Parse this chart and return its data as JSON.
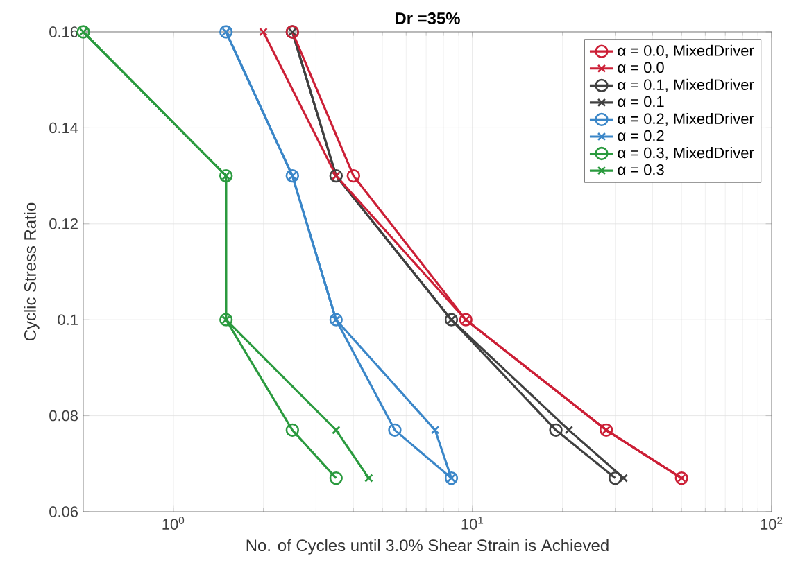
{
  "chart_data": {
    "type": "line",
    "title": "Dr =35%",
    "xlabel": "No. of Cycles until 3.0% Shear Strain is Achieved",
    "ylabel": "Cyclic Stress Ratio",
    "log": "x",
    "grid": true,
    "legend": "top right",
    "xlim": [
      0.5,
      100
    ],
    "xticks": [
      {
        "value": 1,
        "label": "10$^{0}$"
      },
      {
        "value": 10,
        "label": "10$^{1}$"
      },
      {
        "value": 100,
        "label": "10$^{2}$"
      }
    ],
    "ylim": [
      0.06,
      0.16
    ],
    "yticks": [
      0.06,
      0.08,
      0.1,
      0.12,
      0.14,
      0.16
    ],
    "series": [
      {
        "name": "α = 0.0, MixedDriver",
        "color": "#cc1f36",
        "marker": "circle",
        "x": [
          2.5,
          4,
          9.5,
          28,
          50
        ],
        "values": [
          0.16,
          0.13,
          0.1,
          0.077,
          0.067
        ]
      },
      {
        "name": "α = 0.0",
        "color": "#cc1f36",
        "marker": "cross",
        "x": [
          2,
          3.5,
          9.5,
          28,
          50
        ],
        "values": [
          0.16,
          0.13,
          0.1,
          0.077,
          0.067
        ]
      },
      {
        "name": "α = 0.1, MixedDriver",
        "color": "#404040",
        "marker": "circle",
        "x": [
          2.5,
          3.5,
          8.5,
          19,
          30
        ],
        "values": [
          0.16,
          0.13,
          0.1,
          0.077,
          0.067
        ]
      },
      {
        "name": "α = 0.1",
        "color": "#404040",
        "marker": "cross",
        "x": [
          2.5,
          3.5,
          8.5,
          21,
          32
        ],
        "values": [
          0.16,
          0.13,
          0.1,
          0.077,
          0.067
        ]
      },
      {
        "name": "α = 0.2, MixedDriver",
        "color": "#3a86c8",
        "marker": "circle",
        "x": [
          1.5,
          2.5,
          3.5,
          5.5,
          8.5
        ],
        "values": [
          0.16,
          0.13,
          0.1,
          0.077,
          0.067
        ]
      },
      {
        "name": "α = 0.2",
        "color": "#3a86c8",
        "marker": "cross",
        "x": [
          1.5,
          2.5,
          3.5,
          7.5,
          8.5
        ],
        "values": [
          0.16,
          0.13,
          0.1,
          0.077,
          0.067
        ]
      },
      {
        "name": "α = 0.3, MixedDriver",
        "color": "#2a9a3e",
        "marker": "circle",
        "x": [
          0.5,
          1.5,
          1.5,
          2.5,
          3.5
        ],
        "values": [
          0.16,
          0.13,
          0.1,
          0.077,
          0.067
        ]
      },
      {
        "name": "α = 0.3",
        "color": "#2a9a3e",
        "marker": "cross",
        "x": [
          0.5,
          1.5,
          1.5,
          3.5,
          4.5
        ],
        "values": [
          0.16,
          0.13,
          0.1,
          0.077,
          0.067
        ]
      }
    ]
  }
}
